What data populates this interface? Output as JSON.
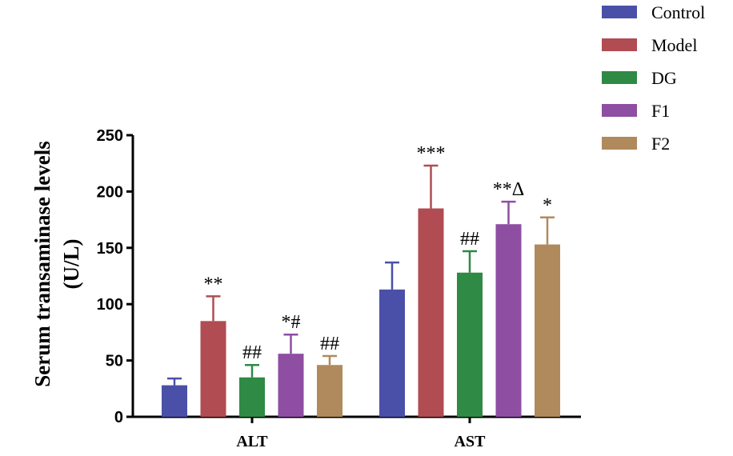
{
  "chart_data": {
    "type": "bar",
    "categories": [
      "ALT",
      "AST"
    ],
    "ylabel_line1": "Serum transaminase levels",
    "ylabel_line2": "(U/L)",
    "ylim": [
      0,
      250
    ],
    "yticks": [
      0,
      50,
      100,
      150,
      200,
      250
    ],
    "legend_position": "top-right",
    "grid": false,
    "series": [
      {
        "name": "Control",
        "color": "#4a50a8",
        "values": [
          28,
          113
        ],
        "errors": [
          6,
          24
        ],
        "annotations": [
          "",
          ""
        ]
      },
      {
        "name": "Model",
        "color": "#b04c52",
        "values": [
          85,
          185
        ],
        "errors": [
          22,
          38
        ],
        "annotations": [
          "**",
          "***"
        ]
      },
      {
        "name": "DG",
        "color": "#2e8a44",
        "values": [
          35,
          128
        ],
        "errors": [
          11,
          19
        ],
        "annotations": [
          "##",
          "##"
        ]
      },
      {
        "name": "F1",
        "color": "#8e4ea2",
        "values": [
          56,
          171
        ],
        "errors": [
          17,
          20
        ],
        "annotations": [
          "*#",
          "**Δ"
        ]
      },
      {
        "name": "F2",
        "color": "#b08a5c",
        "values": [
          46,
          153
        ],
        "errors": [
          8,
          24
        ],
        "annotations": [
          "##",
          "*"
        ]
      }
    ]
  }
}
